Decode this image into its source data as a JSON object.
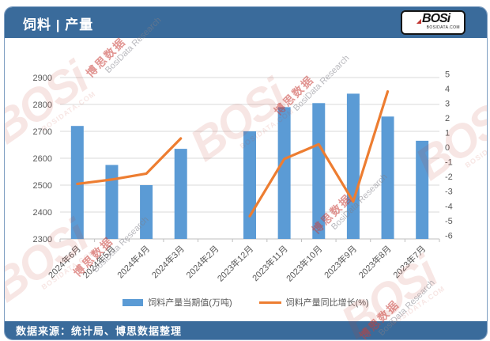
{
  "header": {
    "title": "饲料 | 产量",
    "logo": {
      "text": "BOSi",
      "subtext": "BOSIDATA.COM"
    }
  },
  "watermark": {
    "cn": "博思数据",
    "en": "BosiData Research",
    "logo_text": "BOSi",
    "logo_sub": "BOSIDATA.COM"
  },
  "legend": {
    "bar_label": "饲料产量当期值(万吨)",
    "line_label": "饲料产量同比增长(%)"
  },
  "footer": {
    "source_label": "数据来源：统计局、博思数据整理"
  },
  "colors": {
    "header_bg": "#3A6B9B",
    "bar": "#5B9BD5",
    "line": "#ED7D31",
    "grid": "#D9D9D9",
    "axis_line": "#BFBFBF",
    "axis_text": "#595959",
    "logo_red": "#C23531"
  },
  "chart_data": {
    "type": "bar",
    "subtype": "bar+line dual-axis combo",
    "title": "饲料 | 产量",
    "categories": [
      "2024年6月",
      "2024年5月",
      "2024年4月",
      "2024年3月",
      "2024年2月",
      "2023年12月",
      "2023年11月",
      "2023年10月",
      "2023年9月",
      "2023年8月",
      "2023年7月"
    ],
    "series": [
      {
        "name": "饲料产量当期值(万吨)",
        "type": "bar",
        "axis": "left",
        "color": "#5B9BD5",
        "values": [
          2720,
          2575,
          2500,
          2635,
          null,
          2700,
          2790,
          2805,
          2840,
          2755,
          2665
        ]
      },
      {
        "name": "饲料产量同比增长(%)",
        "type": "line",
        "axis": "right",
        "color": "#ED7D31",
        "values": [
          -2.5,
          -2.2,
          -1.8,
          0.6,
          null,
          -4.7,
          -0.8,
          0.2,
          -3.7,
          3.8,
          null
        ]
      }
    ],
    "left_axis": {
      "ylabel": "",
      "ylim": [
        2300,
        2900
      ],
      "step": 100,
      "ticks": [
        2900,
        2800,
        2700,
        2600,
        2500,
        2400,
        2300
      ]
    },
    "right_axis": {
      "ylabel": "",
      "ticks": [
        5,
        4,
        3,
        2,
        1,
        0,
        -1,
        -2,
        -3,
        -4,
        -5,
        -6
      ],
      "plot_range": [
        -6.25,
        4.75
      ]
    },
    "grid": true,
    "legend_position": "bottom"
  }
}
